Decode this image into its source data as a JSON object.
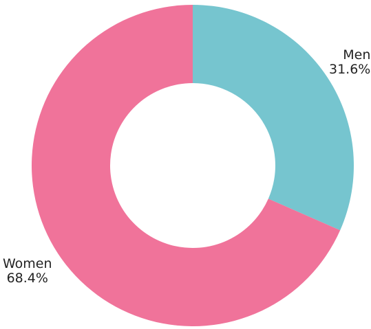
{
  "chart_data": {
    "type": "pie",
    "donut": true,
    "slices": [
      {
        "name": "Men",
        "value": 31.6,
        "value_label": "31.6%",
        "color": "#76c5cf"
      },
      {
        "name": "Women",
        "value": 68.4,
        "value_label": "68.4%",
        "color": "#f0739a"
      }
    ],
    "start_angle_deg": 0,
    "direction": "clockwise",
    "background": "#ffffff"
  }
}
